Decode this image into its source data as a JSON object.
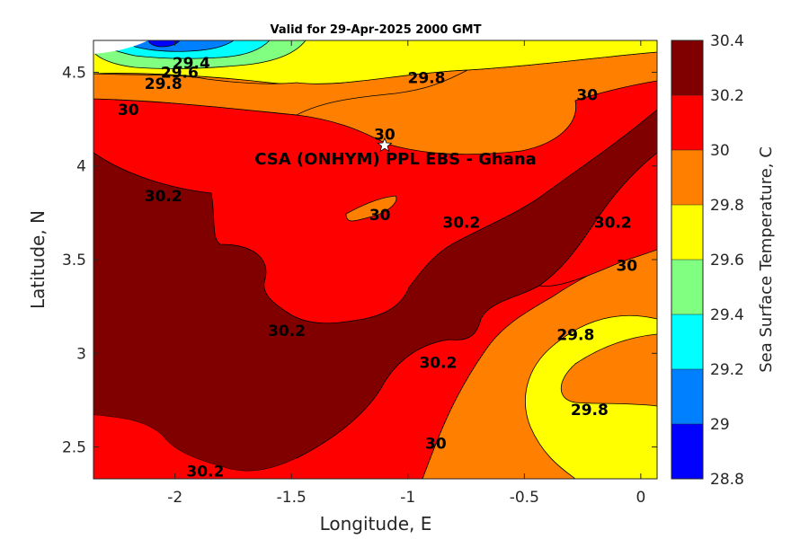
{
  "chart_data": {
    "type": "contour",
    "title": "Valid for 29-Apr-2025 2000 GMT",
    "xlabel": "Longitude, E",
    "ylabel": "Latitude, N",
    "xlim": [
      -2.35,
      0.07
    ],
    "ylim": [
      2.33,
      4.67
    ],
    "xticks": [
      -2,
      -1.5,
      -1,
      -0.5,
      0
    ],
    "xtick_labels": [
      "-2",
      "-1.5",
      "-1",
      "-0.5",
      "0"
    ],
    "yticks": [
      2.5,
      3,
      3.5,
      4,
      4.5
    ],
    "ytick_labels": [
      "2.5",
      "3",
      "3.5",
      "4",
      "4.5"
    ],
    "site": {
      "name": "CSA (ONHYM) PPL EBS  - Ghana",
      "lon": -1.1,
      "lat": 4.11,
      "marker": "white-star"
    },
    "colorbar": {
      "label": "Sea Surface Temperature, C",
      "levels": [
        28.8,
        29.0,
        29.2,
        29.4,
        29.6,
        29.8,
        30.0,
        30.2,
        30.4
      ],
      "level_labels": [
        "28.8",
        "29",
        "29.2",
        "29.4",
        "29.6",
        "29.8",
        "30",
        "30.2",
        "30.4"
      ],
      "colors": [
        "#0000ff",
        "#0080ff",
        "#00ffff",
        "#80ff80",
        "#ffff00",
        "#ff8000",
        "#ff0000",
        "#800000"
      ]
    },
    "contour_labels": [
      {
        "text": "29.4",
        "lon": -1.93,
        "lat": 4.55
      },
      {
        "text": "29.6",
        "lon": -1.98,
        "lat": 4.5
      },
      {
        "text": "29.8",
        "lon": -2.05,
        "lat": 4.44
      },
      {
        "text": "29.8",
        "lon": -0.92,
        "lat": 4.47
      },
      {
        "text": "30",
        "lon": -2.2,
        "lat": 4.3
      },
      {
        "text": "30",
        "lon": -1.1,
        "lat": 4.17
      },
      {
        "text": "30",
        "lon": -0.23,
        "lat": 4.38
      },
      {
        "text": "30",
        "lon": -1.12,
        "lat": 3.74
      },
      {
        "text": "30.2",
        "lon": -2.05,
        "lat": 3.84
      },
      {
        "text": "30.2",
        "lon": -0.77,
        "lat": 3.7
      },
      {
        "text": "30.2",
        "lon": -0.12,
        "lat": 3.7
      },
      {
        "text": "30",
        "lon": -0.06,
        "lat": 3.47
      },
      {
        "text": "30.2",
        "lon": -1.52,
        "lat": 3.12
      },
      {
        "text": "29.8",
        "lon": -0.28,
        "lat": 3.1
      },
      {
        "text": "30.2",
        "lon": -0.87,
        "lat": 2.95
      },
      {
        "text": "29.8",
        "lon": -0.22,
        "lat": 2.7
      },
      {
        "text": "30",
        "lon": -0.88,
        "lat": 2.52
      },
      {
        "text": "30.2",
        "lon": -1.87,
        "lat": 2.37
      }
    ]
  }
}
